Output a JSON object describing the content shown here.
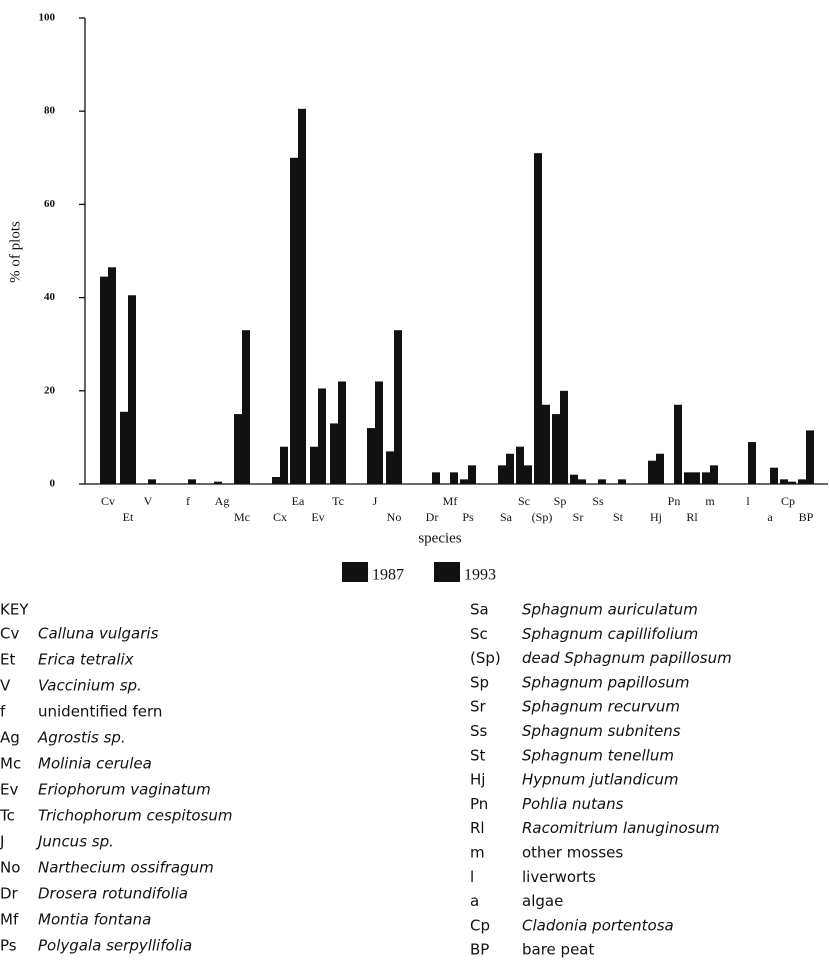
{
  "chart_data": {
    "type": "bar",
    "xlabel": "species",
    "ylabel": "% of plots",
    "categories": [
      "Cv",
      "Et",
      "V",
      "f",
      "Ag",
      "Mc",
      "Cx",
      "Ea",
      "Ev",
      "Tc",
      "J",
      "No",
      "Dr",
      "Mf",
      "Ps",
      "Sa",
      "Sc",
      "(Sp)",
      "Sp",
      "Sr",
      "Ss",
      "St",
      "Hj",
      "Pn",
      "Rl",
      "m",
      "l",
      "a",
      "Cp",
      "BP"
    ],
    "series": [
      {
        "name": "1987",
        "color": "#111111",
        "values": [
          44.5,
          15.5,
          0,
          0,
          0.5,
          15,
          1.5,
          70,
          8,
          13,
          12,
          7,
          0,
          0,
          1,
          4,
          8,
          71,
          15,
          2,
          0,
          0,
          5,
          0,
          2.5,
          2.5,
          0,
          0,
          1,
          1
        ]
      },
      {
        "name": "1993",
        "color": "#111111",
        "values": [
          46.5,
          40.5,
          1,
          1,
          0,
          33,
          8,
          80.5,
          20.5,
          22,
          22,
          33,
          2.5,
          2.5,
          4,
          6.5,
          4,
          17,
          20,
          1,
          1,
          1,
          6.5,
          17,
          2.5,
          4,
          9,
          3.5,
          0.5,
          11.5
        ]
      }
    ],
    "ylim": [
      0,
      100
    ],
    "yticks": [
      0,
      20,
      40,
      60,
      80,
      100
    ],
    "key": {
      "title": "KEY",
      "entries": [
        {
          "code": "Cv",
          "name": "Calluna vulgaris",
          "italic": true
        },
        {
          "code": "Et",
          "name": "Erica tetralix",
          "italic": true
        },
        {
          "code": "V",
          "name": "Vaccinium sp.",
          "italic": true
        },
        {
          "code": "f",
          "name": "unidentified fern",
          "italic": false
        },
        {
          "code": "Ag",
          "name": "Agrostis sp.",
          "italic": true
        },
        {
          "code": "Mc",
          "name": "Molinia cerulea",
          "italic": true
        },
        {
          "code": "Ev",
          "name": "Eriophorum vaginatum",
          "italic": true
        },
        {
          "code": "Tc",
          "name": "Trichophorum cespitosum",
          "italic": true
        },
        {
          "code": "J",
          "name": "Juncus sp.",
          "italic": true
        },
        {
          "code": "No",
          "name": "Narthecium ossifragum",
          "italic": true
        },
        {
          "code": "Dr",
          "name": "Drosera rotundifolia",
          "italic": true
        },
        {
          "code": "Mf",
          "name": "Montia fontana",
          "italic": true
        },
        {
          "code": "Ps",
          "name": "Polygala serpyllifolia",
          "italic": true
        },
        {
          "code": "Sa",
          "name": "Sphagnum auriculatum",
          "italic": true
        },
        {
          "code": "Sc",
          "name": "Sphagnum capillifolium",
          "italic": true
        },
        {
          "code": "(Sp)",
          "name": "dead Sphagnum papillosum",
          "italic": true
        },
        {
          "code": "Sp",
          "name": "Sphagnum papillosum",
          "italic": true
        },
        {
          "code": "Sr",
          "name": "Sphagnum recurvum",
          "italic": true
        },
        {
          "code": "Ss",
          "name": "Sphagnum subnitens",
          "italic": true
        },
        {
          "code": "St",
          "name": "Sphagnum tenellum",
          "italic": true
        },
        {
          "code": "Hj",
          "name": "Hypnum jutlandicum",
          "italic": true
        },
        {
          "code": "Pn",
          "name": "Pohlia nutans",
          "italic": true
        },
        {
          "code": "Rl",
          "name": "Racomitrium lanuginosum",
          "italic": true
        },
        {
          "code": "m",
          "name": "other mosses",
          "italic": false
        },
        {
          "code": "l",
          "name": "liverworts",
          "italic": false
        },
        {
          "code": "a",
          "name": "algae",
          "italic": false
        },
        {
          "code": "Cp",
          "name": "Cladonia portentosa",
          "italic": true
        },
        {
          "code": "BP",
          "name": "bare peat",
          "italic": false
        }
      ]
    }
  }
}
